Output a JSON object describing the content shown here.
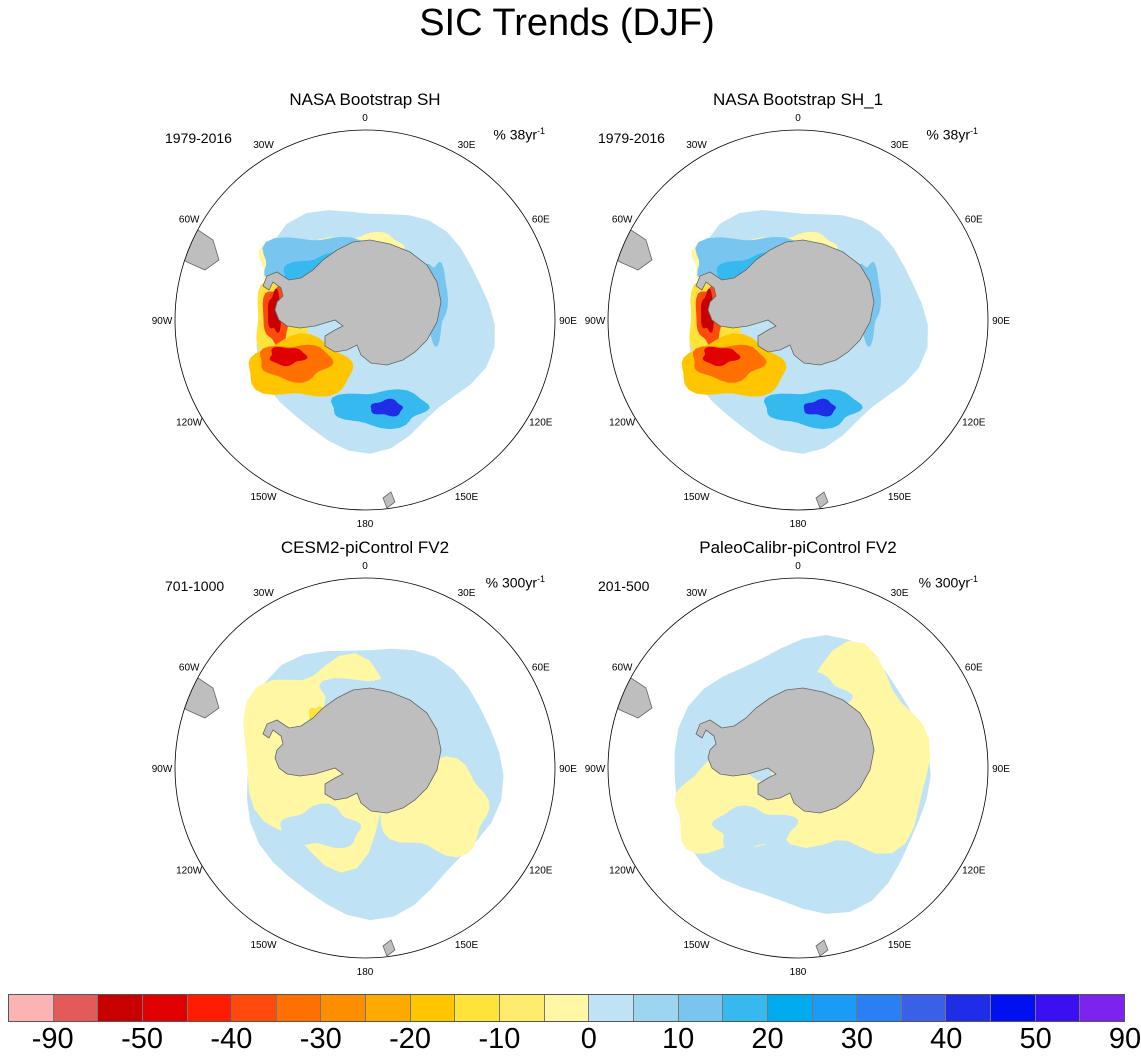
{
  "title": "SIC Trends (DJF)",
  "longitude_labels": [
    "0",
    "30E",
    "60E",
    "90E",
    "120E",
    "150E",
    "180",
    "150W",
    "120W",
    "90W",
    "60W",
    "30W"
  ],
  "panels": [
    {
      "title": "NASA Bootstrap SH",
      "period": "1979-2016",
      "units_prefix": "% 38yr",
      "units_sup": "-1",
      "pattern": "obs",
      "mirror": false
    },
    {
      "title": "NASA Bootstrap SH_1",
      "period": "1979-2016",
      "units_prefix": "% 38yr",
      "units_sup": "-1",
      "pattern": "obs",
      "mirror": false
    },
    {
      "title": "CESM2-piControl FV2",
      "period": "701-1000",
      "units_prefix": "% 300yr",
      "units_sup": "-1",
      "pattern": "model",
      "mirror": false
    },
    {
      "title": "PaleoCalibr-piControl FV2",
      "period": "201-500",
      "units_prefix": "% 300yr",
      "units_sup": "-1",
      "pattern": "model",
      "mirror": true
    }
  ],
  "colorbar": {
    "colors": [
      "#fbb3b3",
      "#e35a5a",
      "#c80000",
      "#e00000",
      "#ff1c00",
      "#ff4a0d",
      "#ff7000",
      "#ff8d00",
      "#ffaa00",
      "#ffc600",
      "#ffe23a",
      "#ffec6e",
      "#fff7a3",
      "#bfe3f5",
      "#9dd4f0",
      "#78c6f0",
      "#35b9ef",
      "#00acee",
      "#1a9bf5",
      "#2a7ff5",
      "#3a5fe8",
      "#1f2ee6",
      "#0010f0",
      "#3b10f0",
      "#7d23ee"
    ],
    "labels": [
      "-90",
      "-50",
      "-40",
      "-30",
      "-20",
      "-10",
      "0",
      "10",
      "20",
      "30",
      "40",
      "50",
      "90"
    ]
  },
  "colors": {
    "land": "#bebebe",
    "land_edge": "#666666",
    "circle": "#000000"
  }
}
